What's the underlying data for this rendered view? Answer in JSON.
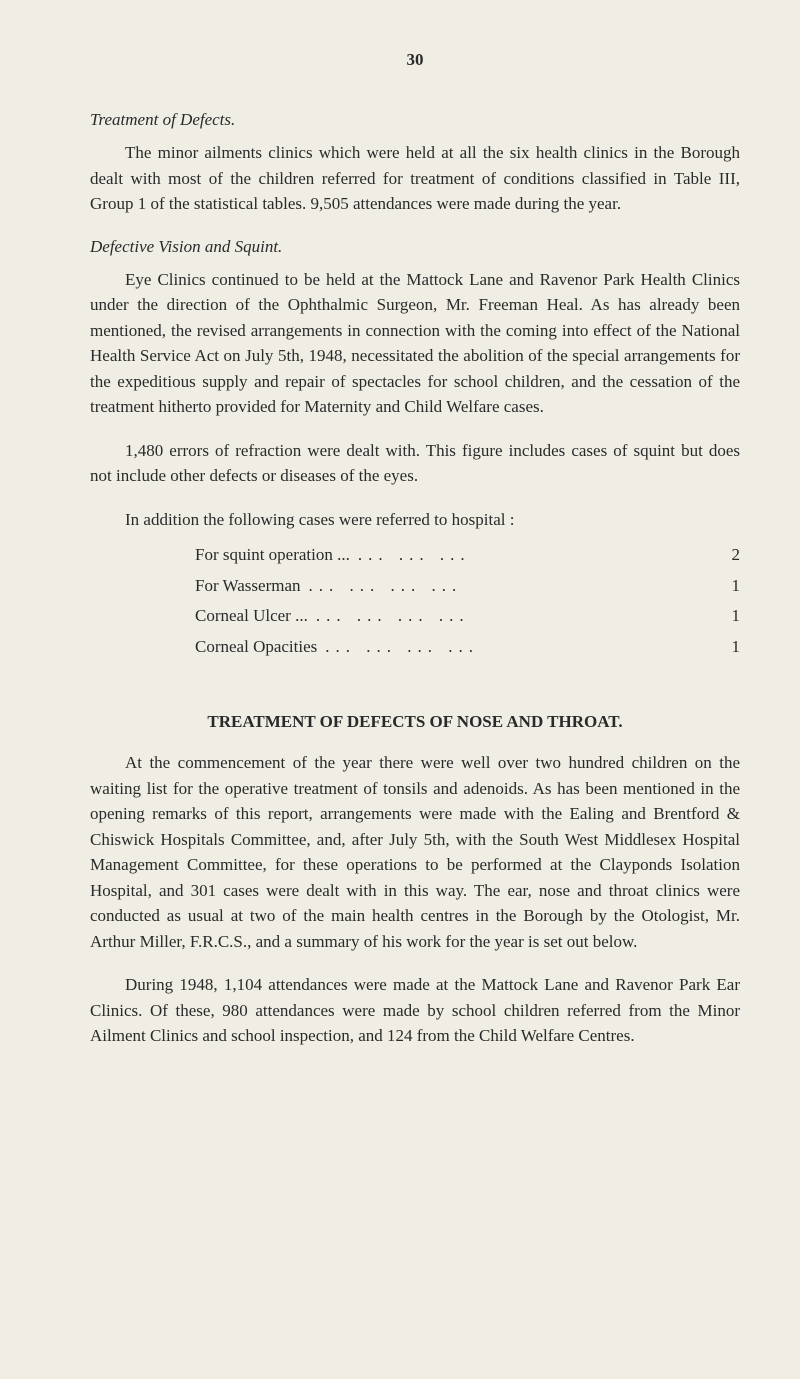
{
  "page_number": "30",
  "colors": {
    "background": "#f0ede4",
    "text": "#2a2a2a"
  },
  "typography": {
    "body_fontsize": 17,
    "line_height": 1.5
  },
  "sections": {
    "treatment_defects": {
      "heading": "Treatment of Defects.",
      "paragraph": "The minor ailments clinics which were held at all the six health clinics in the Borough dealt with most of the children referred for treatment of conditions classified in Table III, Group 1 of the statistical tables. 9,505 attendances were made during the year."
    },
    "defective_vision": {
      "heading": "Defective Vision and Squint.",
      "paragraph1": "Eye Clinics continued to be held at the Mattock Lane and Ravenor Park Health Clinics under the direction of the Ophthalmic Surgeon, Mr. Freeman Heal. As has already been mentioned, the revised arrangements in connection with the coming into effect of the National Health Service Act on July 5th, 1948, necessitated the abolition of the special arrangements for the expeditious supply and repair of spectacles for school children, and the cessation of the treatment hitherto provided for Maternity and Child Welfare cases.",
      "paragraph2": "1,480 errors of refraction were dealt with. This figure includes cases of squint but does not include other defects or diseases of the eyes.",
      "list_intro": "In addition the following cases were referred to hospital :",
      "items": [
        {
          "label": "For squint operation ...",
          "dots": "...     ...     ...",
          "value": "2"
        },
        {
          "label": "For Wasserman",
          "dots": "...     ...     ...     ...",
          "value": "1"
        },
        {
          "label": "Corneal Ulcer ...",
          "dots": "...     ...     ...     ...",
          "value": "1"
        },
        {
          "label": "Corneal Opacities",
          "dots": "...     ...     ...     ...",
          "value": "1"
        }
      ]
    },
    "nose_throat": {
      "heading": "TREATMENT OF DEFECTS OF NOSE AND THROAT.",
      "paragraph1": "At the commencement of the year there were well over two hundred children on the waiting list for the operative treatment of tonsils and adenoids. As has been mentioned in the opening remarks of this report, arrangements were made with the Ealing and Brentford & Chiswick Hospitals Committee, and, after July 5th, with the South West Middlesex Hospital Management Com­mittee, for these operations to be performed at the Clayponds Isolation Hospital, and 301 cases were dealt with in this way. The ear, nose and throat clinics were conducted as usual at two of the main health centres in the Borough by the Otologist, Mr. Arthur Miller, F.R.C.S., and a summary of his work for the year is set out below.",
      "paragraph2": "During 1948, 1,104 attendances were made at the Mattock Lane and Ravenor Park Ear Clinics. Of these, 980 attendances were made by school children referred from the Minor Ailment Clinics and school inspection, and 124 from the Child Welfare Centres."
    }
  }
}
